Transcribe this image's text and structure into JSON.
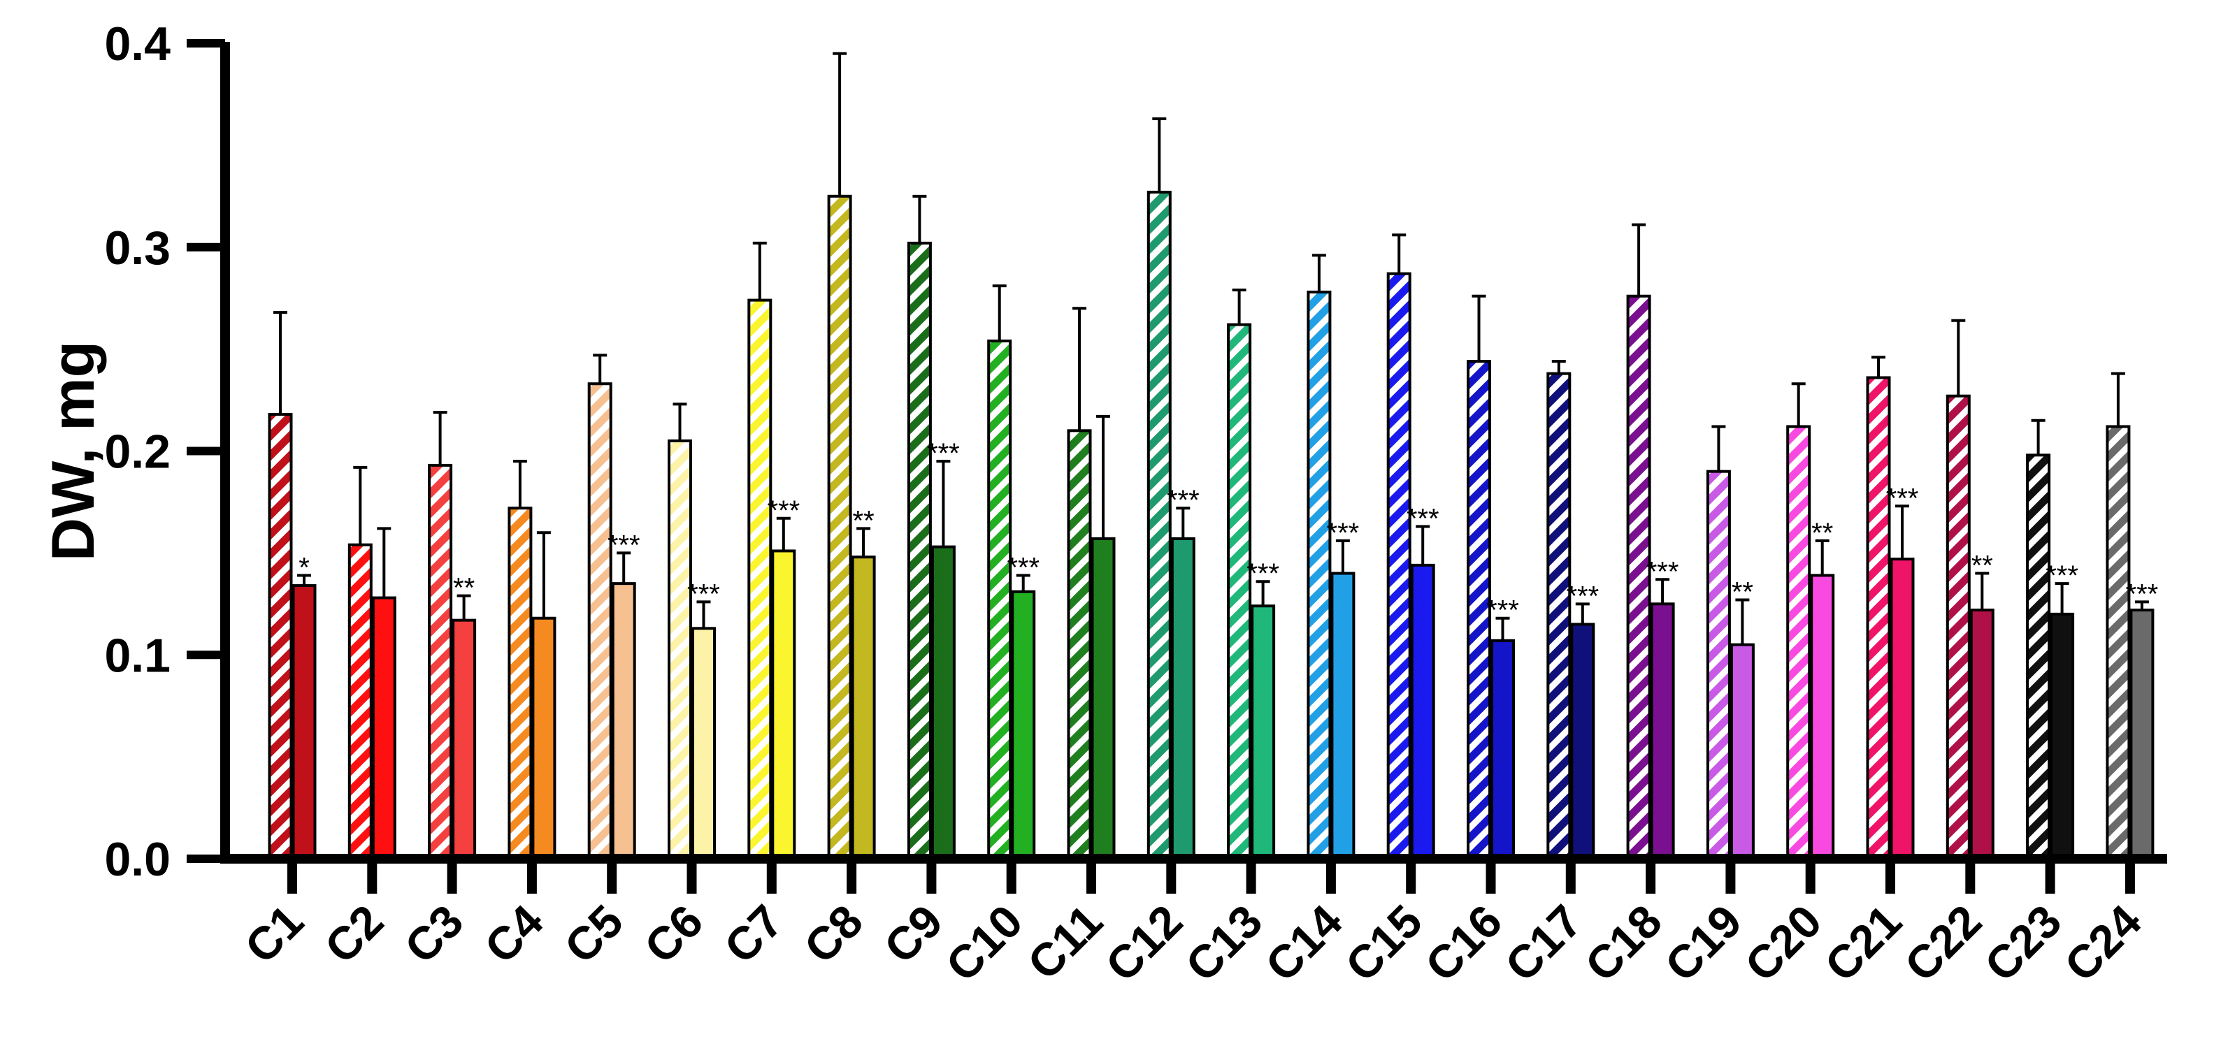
{
  "chart_data": {
    "type": "bar",
    "title": "",
    "xlabel": "",
    "ylabel": "DW, mg",
    "ylim": [
      0,
      0.4
    ],
    "yticks": [
      "0.0",
      "0.1",
      "0.2",
      "0.3",
      "0.4"
    ],
    "grid": false,
    "categories": [
      "C1",
      "C2",
      "C3",
      "C4",
      "C5",
      "C6",
      "C7",
      "C8",
      "C9",
      "C10",
      "C11",
      "C12",
      "C13",
      "C14",
      "C15",
      "C16",
      "C17",
      "C18",
      "C19",
      "C20",
      "C21",
      "C22",
      "C23",
      "C24"
    ],
    "colors": [
      "#c0101a",
      "#ff1010",
      "#f54040",
      "#f58a20",
      "#f7c090",
      "#fcf3a8",
      "#fbf530",
      "#c4b820",
      "#1a6e1a",
      "#22b022",
      "#1f7f1f",
      "#1f9a6e",
      "#20b87a",
      "#22a0e6",
      "#1a1aee",
      "#1414c8",
      "#10107a",
      "#7a1090",
      "#c85ae6",
      "#f84ae0",
      "#f01468",
      "#b01048",
      "#101010",
      "#6a6a6a"
    ],
    "series": [
      {
        "pattern": "striped",
        "values": [
          0.218,
          0.154,
          0.193,
          0.172,
          0.233,
          0.205,
          0.274,
          0.325,
          0.302,
          0.254,
          0.21,
          0.327,
          0.262,
          0.278,
          0.287,
          0.244,
          0.238,
          0.276,
          0.19,
          0.212,
          0.236,
          0.227,
          0.198,
          0.212
        ],
        "errors": [
          0.05,
          0.038,
          0.026,
          0.023,
          0.014,
          0.018,
          0.028,
          0.07,
          0.023,
          0.027,
          0.06,
          0.036,
          0.017,
          0.018,
          0.019,
          0.032,
          0.006,
          0.035,
          0.022,
          0.021,
          0.01,
          0.037,
          0.017,
          0.026
        ],
        "significance": [
          "",
          "",
          "",
          "",
          "",
          "",
          "",
          "",
          "",
          "",
          "",
          "",
          "",
          "",
          "",
          "",
          "",
          "",
          "",
          "",
          "",
          "",
          "",
          ""
        ]
      },
      {
        "pattern": "solid",
        "values": [
          0.134,
          0.128,
          0.117,
          0.118,
          0.135,
          0.113,
          0.151,
          0.148,
          0.153,
          0.131,
          0.157,
          0.157,
          0.124,
          0.14,
          0.144,
          0.107,
          0.115,
          0.125,
          0.105,
          0.139,
          0.147,
          0.122,
          0.12,
          0.122
        ],
        "errors": [
          0.005,
          0.034,
          0.012,
          0.042,
          0.015,
          0.013,
          0.016,
          0.014,
          0.042,
          0.008,
          0.06,
          0.015,
          0.012,
          0.016,
          0.019,
          0.011,
          0.01,
          0.012,
          0.022,
          0.017,
          0.026,
          0.018,
          0.015,
          0.004
        ],
        "significance": [
          "*",
          "",
          "**",
          "",
          "***",
          "***",
          "***",
          "**",
          "***",
          "***",
          "",
          "***",
          "***",
          "***",
          "***",
          "***",
          "***",
          "***",
          "**",
          "**",
          "***",
          "**",
          "***",
          "***"
        ]
      }
    ]
  }
}
